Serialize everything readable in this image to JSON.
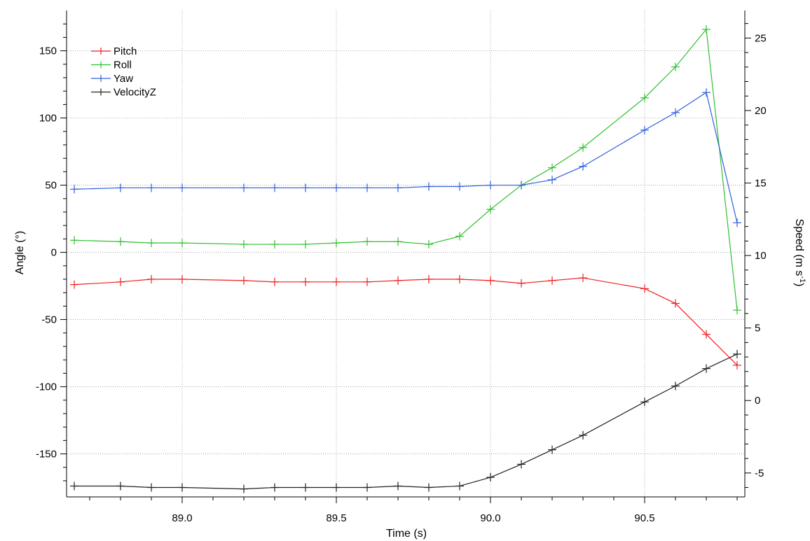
{
  "chart_data": {
    "type": "line",
    "xlabel": "Time (s)",
    "ylabel_left": "Angle (°)",
    "ylabel_right_base": "Speed (m s",
    "ylabel_right_sup": "-1",
    "ylabel_right_close": ")",
    "xlim": [
      88.625,
      90.825
    ],
    "ylim_left": [
      -182,
      180
    ],
    "ylim_right": [
      -6.65,
      26.9
    ],
    "x_ticks": [
      89.0,
      89.5,
      90.0,
      90.5
    ],
    "x_tick_labels": [
      "89.0",
      "89.5",
      "90.0",
      "90.5"
    ],
    "y_left_ticks": [
      150,
      100,
      50,
      0,
      -50,
      -100,
      -150
    ],
    "y_left_tick_labels": [
      "150",
      "100",
      "50",
      "0",
      "-50",
      "-100",
      "-150"
    ],
    "y_right_ticks": [
      25,
      20,
      15,
      10,
      5,
      0,
      -5
    ],
    "y_right_tick_labels": [
      "25",
      "20",
      "15",
      "10",
      "5",
      "0",
      "-5"
    ],
    "grid": true,
    "legend_position": "top-left",
    "series": [
      {
        "name": "Pitch",
        "color": "#ee2020",
        "axis": "left",
        "x": [
          88.65,
          88.8,
          88.9,
          89.0,
          89.2,
          89.3,
          89.4,
          89.5,
          89.6,
          89.7,
          89.8,
          89.9,
          90.0,
          90.1,
          90.2,
          90.3,
          90.5,
          90.6,
          90.7,
          90.8
        ],
        "y": [
          -24,
          -22,
          -20,
          -20,
          -21,
          -22,
          -22,
          -22,
          -22,
          -21,
          -20,
          -20,
          -21,
          -23,
          -21,
          -19,
          -27,
          -38,
          -61,
          -84
        ]
      },
      {
        "name": "Roll",
        "color": "#2fc02f",
        "axis": "left",
        "x": [
          88.65,
          88.8,
          88.9,
          89.0,
          89.2,
          89.3,
          89.4,
          89.5,
          89.6,
          89.7,
          89.8,
          89.9,
          90.0,
          90.1,
          90.2,
          90.3,
          90.5,
          90.6,
          90.7,
          90.8
        ],
        "y": [
          9,
          8,
          7,
          7,
          6,
          6,
          6,
          7,
          8,
          8,
          6,
          12,
          32,
          50,
          63,
          78,
          115,
          138,
          166,
          -43
        ]
      },
      {
        "name": "Yaw",
        "color": "#2f5fdf",
        "axis": "left",
        "x": [
          88.65,
          88.8,
          88.9,
          89.0,
          89.2,
          89.3,
          89.4,
          89.5,
          89.6,
          89.7,
          89.8,
          89.9,
          90.0,
          90.1,
          90.2,
          90.3,
          90.5,
          90.6,
          90.7,
          90.8
        ],
        "y": [
          47,
          48,
          48,
          48,
          48,
          48,
          48,
          48,
          48,
          48,
          49,
          49,
          50,
          50,
          54,
          64,
          91,
          104,
          119,
          22
        ]
      },
      {
        "name": "VelocityZ",
        "color": "#222222",
        "axis": "right",
        "x": [
          88.65,
          88.8,
          88.9,
          89.0,
          89.2,
          89.3,
          89.4,
          89.5,
          89.6,
          89.7,
          89.8,
          89.9,
          90.0,
          90.1,
          90.2,
          90.3,
          90.5,
          90.6,
          90.7,
          90.8
        ],
        "y": [
          -5.9,
          -5.9,
          -6.0,
          -6.0,
          -6.1,
          -6.0,
          -6.0,
          -6.0,
          -6.0,
          -5.9,
          -6.0,
          -5.9,
          -5.3,
          -4.4,
          -3.4,
          -2.4,
          -0.1,
          1.0,
          2.2,
          3.2
        ]
      }
    ]
  }
}
